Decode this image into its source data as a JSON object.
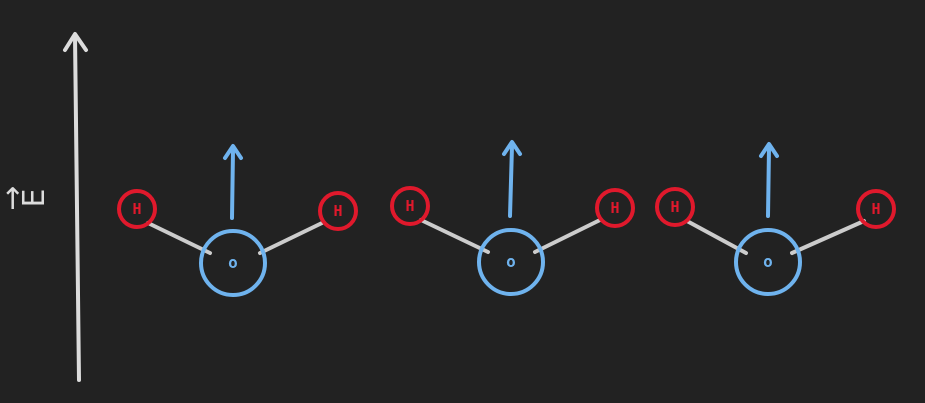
{
  "field": {
    "label": "E",
    "vector_mark": "→",
    "direction": "up"
  },
  "colors": {
    "background": "#222222",
    "hydrogen": "#e0192c",
    "oxygen": "#6fb3ee",
    "bond": "#cccccc",
    "field_arrow": "#dcdcdc",
    "dipole_arrow": "#6fb3ee"
  },
  "molecules": [
    {
      "name": "water-molecule-1",
      "oxygen_label": "o",
      "hydrogen_labels": [
        "H",
        "H"
      ],
      "dipole": "up"
    },
    {
      "name": "water-molecule-2",
      "oxygen_label": "o",
      "hydrogen_labels": [
        "H",
        "H"
      ],
      "dipole": "up"
    },
    {
      "name": "water-molecule-3",
      "oxygen_label": "o",
      "hydrogen_labels": [
        "H",
        "H"
      ],
      "dipole": "up"
    }
  ]
}
